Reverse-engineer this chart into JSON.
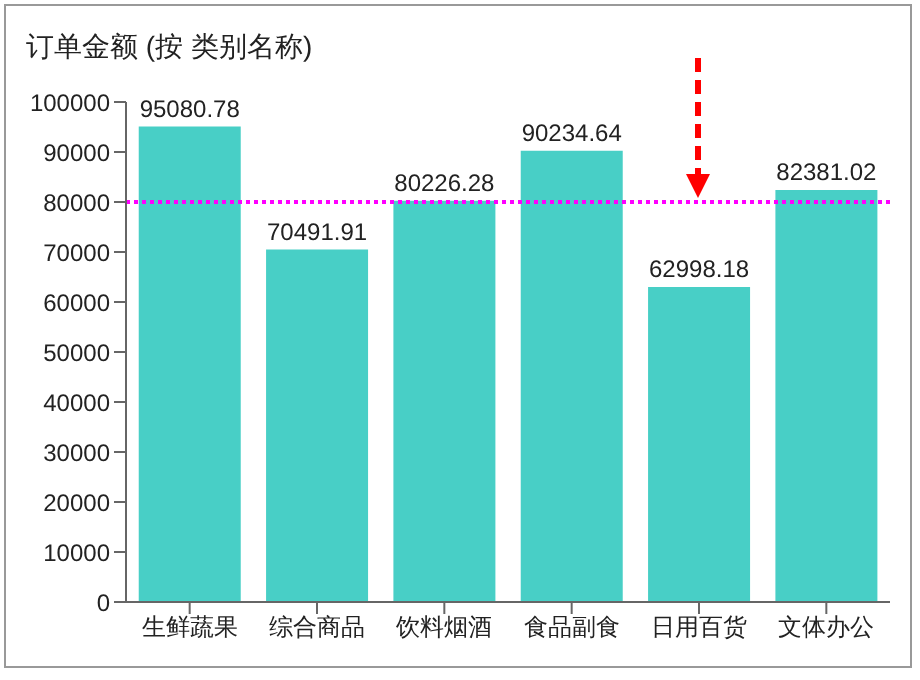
{
  "chart_data": {
    "type": "bar",
    "title": "订单金额 (按 类别名称)",
    "categories": [
      "生鲜蔬果",
      "综合商品",
      "饮料烟酒",
      "食品副食",
      "日用百货",
      "文体办公"
    ],
    "values": [
      95080.78,
      70491.91,
      80226.28,
      90234.64,
      62998.18,
      82381.02
    ],
    "color": "#48cfc6",
    "ylim": [
      0,
      100000
    ],
    "yticks": [
      0,
      10000,
      20000,
      30000,
      40000,
      50000,
      60000,
      70000,
      80000,
      90000,
      100000
    ],
    "grid": false,
    "legend": false,
    "data_labels": true,
    "ref_lines": [
      {
        "axis": "y",
        "value": 80000,
        "color": "#ff00ff",
        "line_style": "dotted"
      }
    ]
  }
}
